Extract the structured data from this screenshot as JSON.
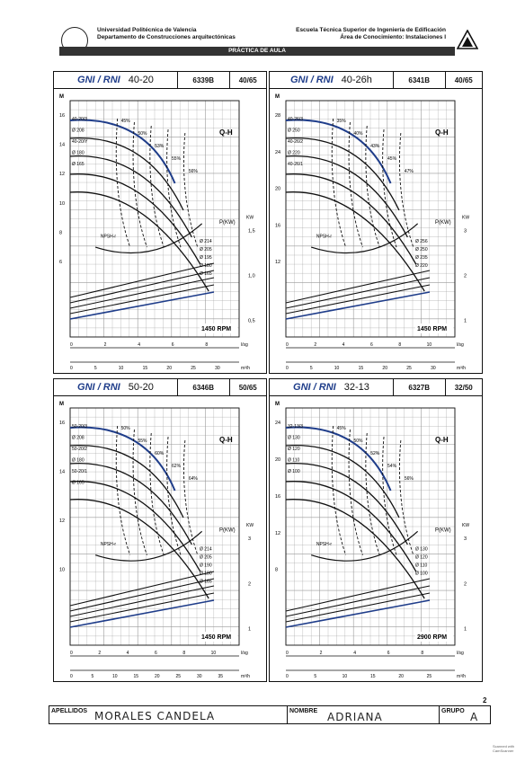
{
  "header": {
    "uni_line1": "Universidad Politécnica de Valencia",
    "uni_line2": "Departamento de Construcciones arquitectónicas",
    "esc_line1": "Escuela Técnica Superior de Ingeniería de Edificación",
    "esc_line2": "Área de Conocimiento: Instalaciones I",
    "bar": "PRÁCTICA DE AULA"
  },
  "panels": [
    {
      "brand": "GNI / RNI",
      "model": "40-20",
      "code": "6339B",
      "ratio": "40/65",
      "qh": "Q-H",
      "rpm": "1450 RPM",
      "npsh": "NPSH-r",
      "p": "P(KW)",
      "chart_data": {
        "type": "line",
        "xlabel": "m³/h",
        "ylabel": "M",
        "h_ticks": [
          "16",
          "14",
          "12",
          "10",
          "8",
          "6"
        ],
        "q_ticks": [
          "0",
          "5",
          "10",
          "15",
          "20",
          "25",
          "30"
        ],
        "ls_ticks": [
          "0",
          "2",
          "4",
          "6",
          "8"
        ],
        "kw_ticks": [
          "1,5",
          "1,0",
          "0,5"
        ],
        "impellers": [
          "40-20/3",
          "Ø 208",
          "40-20/Y",
          "Ø 180",
          "Ø 165"
        ],
        "effs": [
          "45%",
          "50%",
          "53%",
          "55%",
          "56%"
        ],
        "pdia": [
          "Ø 214",
          "Ø 205",
          "Ø 195",
          "Ø 180",
          "Ø 165"
        ]
      }
    },
    {
      "brand": "GNI / RNI",
      "model": "40-26h",
      "code": "6341B",
      "ratio": "40/65",
      "qh": "Q-H",
      "rpm": "1450 RPM",
      "npsh": "NPSH-r",
      "p": "P(KW)",
      "chart_data": {
        "type": "line",
        "xlabel": "m³/h",
        "ylabel": "M",
        "h_ticks": [
          "28",
          "24",
          "20",
          "16",
          "12"
        ],
        "q_ticks": [
          "0",
          "5",
          "10",
          "15",
          "20",
          "25",
          "30"
        ],
        "ls_ticks": [
          "0",
          "2",
          "4",
          "6",
          "8",
          "10"
        ],
        "kw_ticks": [
          "3",
          "2",
          "1"
        ],
        "impellers": [
          "40-26/3",
          "Ø 250",
          "40-26/2",
          "Ø 220",
          "40-26/1"
        ],
        "effs": [
          "35%",
          "40%",
          "43%",
          "45%",
          "47%"
        ],
        "pdia": [
          "Ø 256",
          "Ø 250",
          "Ø 235",
          "Ø 220"
        ]
      }
    },
    {
      "brand": "GNI / RNI",
      "model": "50-20",
      "code": "6346B",
      "ratio": "50/65",
      "qh": "Q-H",
      "rpm": "1450 RPM",
      "npsh": "NPSH-r",
      "p": "P(KW)",
      "chart_data": {
        "type": "line",
        "xlabel": "m³/h",
        "ylabel": "M",
        "h_ticks": [
          "16",
          "14",
          "12",
          "10"
        ],
        "q_ticks": [
          "0",
          "5",
          "10",
          "15",
          "20",
          "25",
          "30",
          "35"
        ],
        "ls_ticks": [
          "0",
          "2",
          "4",
          "6",
          "8",
          "10"
        ],
        "kw_ticks": [
          "3",
          "2",
          "1"
        ],
        "impellers": [
          "50-20/3",
          "Ø 208",
          "50-20/2",
          "Ø 180",
          "50-20/1",
          "Ø 165"
        ],
        "effs": [
          "50%",
          "55%",
          "60%",
          "62%",
          "64%"
        ],
        "pdia": [
          "Ø 214",
          "Ø 205",
          "Ø 190",
          "Ø 180",
          "Ø 165"
        ]
      }
    },
    {
      "brand": "GNI / RNI",
      "model": "32-13",
      "code": "6327B",
      "ratio": "32/50",
      "qh": "Q-H",
      "rpm": "2900 RPM",
      "npsh": "NPSH-r",
      "p": "P(KW)",
      "chart_data": {
        "type": "line",
        "xlabel": "m³/h",
        "ylabel": "M",
        "h_ticks": [
          "24",
          "20",
          "16",
          "12",
          "8"
        ],
        "q_ticks": [
          "0",
          "5",
          "10",
          "15",
          "20",
          "25"
        ],
        "ls_ticks": [
          "0",
          "2",
          "4",
          "6",
          "8"
        ],
        "kw_ticks": [
          "3",
          "2",
          "1"
        ],
        "impellers": [
          "32-13/3",
          "Ø 130",
          "Ø 120",
          "Ø 110",
          "Ø 100"
        ],
        "effs": [
          "45%",
          "50%",
          "52%",
          "54%",
          "56%"
        ],
        "pdia": [
          "Ø 130",
          "Ø 120",
          "Ø 110",
          "Ø 100"
        ]
      }
    }
  ],
  "footer": {
    "apellidos_label": "APELLIDOS",
    "apellidos": "MORALES CANDELA",
    "nombre_label": "NOMBRE",
    "nombre": "ADRIANA",
    "grupo_label": "GRUPO",
    "grupo": "A"
  },
  "page_number": "2",
  "scanner": "Scanned with CamScanner"
}
